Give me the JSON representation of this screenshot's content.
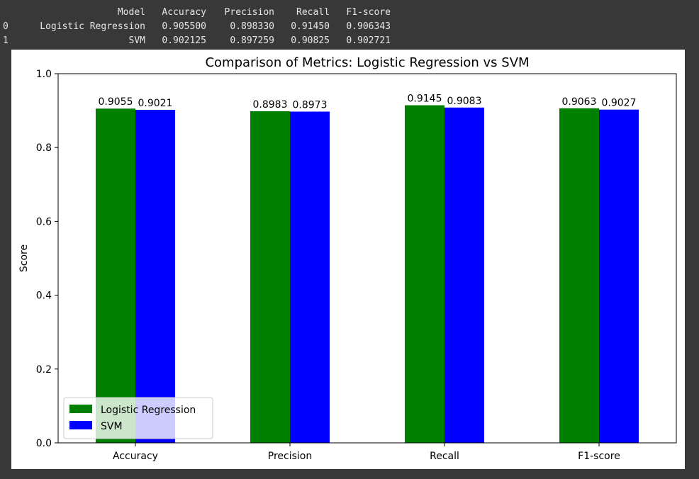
{
  "output_table": {
    "header": [
      "",
      "Model",
      "Accuracy",
      "Precision",
      "Recall",
      "F1-score"
    ],
    "rows": [
      [
        "0",
        "Logistic Regression",
        "0.905500",
        "0.898330",
        "0.91450",
        "0.906343"
      ],
      [
        "1",
        "SVM",
        "0.902125",
        "0.897259",
        "0.90825",
        "0.902721"
      ]
    ]
  },
  "chart_data": {
    "type": "bar",
    "title": "Comparison of Metrics: Logistic Regression vs SVM",
    "xlabel": "",
    "ylabel": "Score",
    "ylim": [
      0,
      1.0
    ],
    "yticks": [
      "0.0",
      "0.2",
      "0.4",
      "0.6",
      "0.8",
      "1.0"
    ],
    "categories": [
      "Accuracy",
      "Precision",
      "Recall",
      "F1-score"
    ],
    "series": [
      {
        "name": "Logistic Regression",
        "color": "#008000",
        "values": [
          0.9055,
          0.8983,
          0.9145,
          0.9063
        ],
        "labels": [
          "0.9055",
          "0.8983",
          "0.9145",
          "0.9063"
        ]
      },
      {
        "name": "SVM",
        "color": "#0000ff",
        "values": [
          0.9021,
          0.8973,
          0.9083,
          0.9027
        ],
        "labels": [
          "0.9021",
          "0.8973",
          "0.9083",
          "0.9027"
        ]
      }
    ],
    "legend": "lower-left",
    "grid": false
  }
}
